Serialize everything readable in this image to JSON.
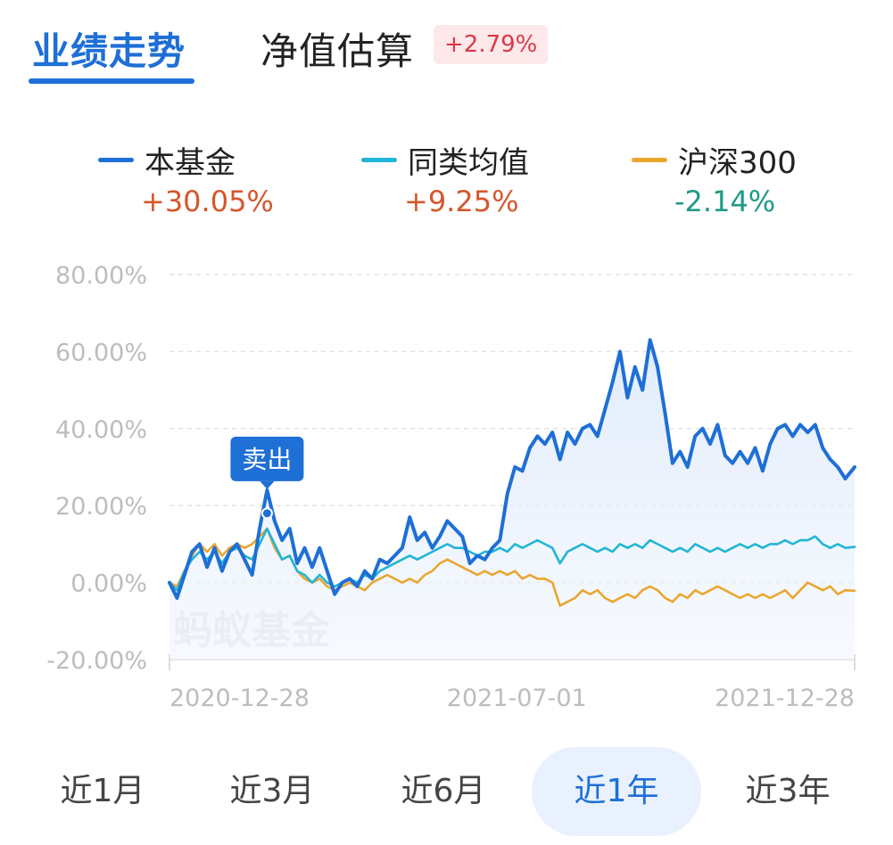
{
  "tabs": {
    "performance": "业绩走势",
    "nav_estimate": "净值估算",
    "estimate_badge": "+2.79%"
  },
  "legend": [
    {
      "name": "本基金",
      "value": "+30.05%",
      "color": "#1e6fd6",
      "value_color": "#d4572c"
    },
    {
      "name": "同类均值",
      "value": "+9.25%",
      "color": "#21b5d6",
      "value_color": "#d4572c"
    },
    {
      "name": "沪深300",
      "value": "-2.14%",
      "color": "#eba630",
      "value_color": "#1f9a86"
    }
  ],
  "watermark": "蚂蚁基金",
  "chart_data": {
    "type": "line",
    "y_ticks": [
      "80.00%",
      "60.00%",
      "40.00%",
      "20.00%",
      "0.00%",
      "-20.00%"
    ],
    "ylim": [
      -20,
      80
    ],
    "x_ticks": [
      {
        "label": "2020-12-28",
        "x": "2020-12-28"
      },
      {
        "label": "2021-07-01",
        "x": "2021-07-01"
      },
      {
        "label": "2021-12-28",
        "x": "2021-12-28"
      }
    ],
    "xlim": [
      "2020-12-28",
      "2021-12-28"
    ],
    "grid": true,
    "legend_position": "top",
    "annotation": {
      "label": "卖出",
      "x": "2021-02-18",
      "y": 18
    },
    "series": [
      {
        "name": "本基金",
        "color": "#1e6fd6",
        "area": true,
        "points": [
          [
            "2020-12-28",
            0
          ],
          [
            "2021-01-01",
            -4
          ],
          [
            "2021-01-05",
            2
          ],
          [
            "2021-01-09",
            8
          ],
          [
            "2021-01-13",
            10
          ],
          [
            "2021-01-17",
            4
          ],
          [
            "2021-01-21",
            9
          ],
          [
            "2021-01-25",
            3
          ],
          [
            "2021-01-29",
            8
          ],
          [
            "2021-02-02",
            10
          ],
          [
            "2021-02-06",
            6
          ],
          [
            "2021-02-10",
            2
          ],
          [
            "2021-02-14",
            14
          ],
          [
            "2021-02-18",
            24
          ],
          [
            "2021-02-22",
            16
          ],
          [
            "2021-02-26",
            11
          ],
          [
            "2021-03-02",
            14
          ],
          [
            "2021-03-06",
            5
          ],
          [
            "2021-03-10",
            9
          ],
          [
            "2021-03-14",
            4
          ],
          [
            "2021-03-18",
            9
          ],
          [
            "2021-03-22",
            3
          ],
          [
            "2021-03-26",
            -3
          ],
          [
            "2021-03-30",
            0
          ],
          [
            "2021-04-03",
            1
          ],
          [
            "2021-04-07",
            -1
          ],
          [
            "2021-04-11",
            3
          ],
          [
            "2021-04-15",
            1
          ],
          [
            "2021-04-19",
            6
          ],
          [
            "2021-04-23",
            5
          ],
          [
            "2021-04-27",
            7
          ],
          [
            "2021-05-01",
            9
          ],
          [
            "2021-05-05",
            17
          ],
          [
            "2021-05-09",
            11
          ],
          [
            "2021-05-13",
            13
          ],
          [
            "2021-05-17",
            9
          ],
          [
            "2021-05-21",
            12
          ],
          [
            "2021-05-25",
            16
          ],
          [
            "2021-05-29",
            14
          ],
          [
            "2021-06-02",
            12
          ],
          [
            "2021-06-06",
            5
          ],
          [
            "2021-06-10",
            7
          ],
          [
            "2021-06-14",
            6
          ],
          [
            "2021-06-18",
            9
          ],
          [
            "2021-06-22",
            11
          ],
          [
            "2021-06-26",
            23
          ],
          [
            "2021-06-30",
            30
          ],
          [
            "2021-07-04",
            29
          ],
          [
            "2021-07-08",
            35
          ],
          [
            "2021-07-12",
            38
          ],
          [
            "2021-07-16",
            36
          ],
          [
            "2021-07-20",
            39
          ],
          [
            "2021-07-24",
            32
          ],
          [
            "2021-07-28",
            39
          ],
          [
            "2021-08-01",
            36
          ],
          [
            "2021-08-05",
            40
          ],
          [
            "2021-08-09",
            41
          ],
          [
            "2021-08-13",
            38
          ],
          [
            "2021-08-17",
            45
          ],
          [
            "2021-08-21",
            52
          ],
          [
            "2021-08-25",
            60
          ],
          [
            "2021-08-29",
            48
          ],
          [
            "2021-09-02",
            56
          ],
          [
            "2021-09-06",
            50
          ],
          [
            "2021-09-10",
            63
          ],
          [
            "2021-09-14",
            56
          ],
          [
            "2021-09-18",
            44
          ],
          [
            "2021-09-22",
            31
          ],
          [
            "2021-09-26",
            34
          ],
          [
            "2021-09-30",
            30
          ],
          [
            "2021-10-04",
            38
          ],
          [
            "2021-10-08",
            40
          ],
          [
            "2021-10-12",
            36
          ],
          [
            "2021-10-16",
            41
          ],
          [
            "2021-10-20",
            33
          ],
          [
            "2021-10-24",
            31
          ],
          [
            "2021-10-28",
            34
          ],
          [
            "2021-11-01",
            31
          ],
          [
            "2021-11-05",
            35
          ],
          [
            "2021-11-09",
            29
          ],
          [
            "2021-11-13",
            36
          ],
          [
            "2021-11-17",
            40
          ],
          [
            "2021-11-21",
            41
          ],
          [
            "2021-11-25",
            38
          ],
          [
            "2021-11-29",
            41
          ],
          [
            "2021-12-03",
            39
          ],
          [
            "2021-12-07",
            41
          ],
          [
            "2021-12-11",
            35
          ],
          [
            "2021-12-15",
            32
          ],
          [
            "2021-12-19",
            30
          ],
          [
            "2021-12-23",
            27
          ],
          [
            "2021-12-28",
            30
          ]
        ]
      },
      {
        "name": "同类均值",
        "color": "#21b5d6",
        "area": false,
        "points": [
          [
            "2020-12-28",
            0
          ],
          [
            "2021-01-01",
            -2
          ],
          [
            "2021-01-05",
            3
          ],
          [
            "2021-01-09",
            6
          ],
          [
            "2021-01-13",
            8
          ],
          [
            "2021-01-17",
            6
          ],
          [
            "2021-01-21",
            8
          ],
          [
            "2021-01-25",
            5
          ],
          [
            "2021-01-29",
            8
          ],
          [
            "2021-02-02",
            9
          ],
          [
            "2021-02-06",
            7
          ],
          [
            "2021-02-10",
            6
          ],
          [
            "2021-02-14",
            10
          ],
          [
            "2021-02-18",
            14
          ],
          [
            "2021-02-22",
            10
          ],
          [
            "2021-02-26",
            6
          ],
          [
            "2021-03-02",
            7
          ],
          [
            "2021-03-06",
            3
          ],
          [
            "2021-03-10",
            2
          ],
          [
            "2021-03-14",
            0
          ],
          [
            "2021-03-18",
            2
          ],
          [
            "2021-03-22",
            0
          ],
          [
            "2021-03-26",
            -1
          ],
          [
            "2021-03-30",
            0
          ],
          [
            "2021-04-03",
            1
          ],
          [
            "2021-04-07",
            0
          ],
          [
            "2021-04-11",
            2
          ],
          [
            "2021-04-15",
            1
          ],
          [
            "2021-04-19",
            3
          ],
          [
            "2021-04-23",
            4
          ],
          [
            "2021-04-27",
            5
          ],
          [
            "2021-05-01",
            6
          ],
          [
            "2021-05-05",
            7
          ],
          [
            "2021-05-09",
            6
          ],
          [
            "2021-05-13",
            7
          ],
          [
            "2021-05-17",
            8
          ],
          [
            "2021-05-21",
            9
          ],
          [
            "2021-05-25",
            10
          ],
          [
            "2021-05-29",
            9
          ],
          [
            "2021-06-02",
            9
          ],
          [
            "2021-06-06",
            8
          ],
          [
            "2021-06-10",
            7
          ],
          [
            "2021-06-14",
            8
          ],
          [
            "2021-06-18",
            8
          ],
          [
            "2021-06-22",
            9
          ],
          [
            "2021-06-26",
            8
          ],
          [
            "2021-06-30",
            10
          ],
          [
            "2021-07-04",
            9
          ],
          [
            "2021-07-08",
            10
          ],
          [
            "2021-07-12",
            11
          ],
          [
            "2021-07-16",
            10
          ],
          [
            "2021-07-20",
            9
          ],
          [
            "2021-07-24",
            5
          ],
          [
            "2021-07-28",
            8
          ],
          [
            "2021-08-01",
            9
          ],
          [
            "2021-08-05",
            10
          ],
          [
            "2021-08-09",
            9
          ],
          [
            "2021-08-13",
            8
          ],
          [
            "2021-08-17",
            9
          ],
          [
            "2021-08-21",
            8
          ],
          [
            "2021-08-25",
            10
          ],
          [
            "2021-08-29",
            9
          ],
          [
            "2021-09-02",
            10
          ],
          [
            "2021-09-06",
            9
          ],
          [
            "2021-09-10",
            11
          ],
          [
            "2021-09-14",
            10
          ],
          [
            "2021-09-18",
            9
          ],
          [
            "2021-09-22",
            8
          ],
          [
            "2021-09-26",
            9
          ],
          [
            "2021-09-30",
            8
          ],
          [
            "2021-10-04",
            10
          ],
          [
            "2021-10-08",
            9
          ],
          [
            "2021-10-12",
            8
          ],
          [
            "2021-10-16",
            9
          ],
          [
            "2021-10-20",
            8
          ],
          [
            "2021-10-24",
            9
          ],
          [
            "2021-10-28",
            10
          ],
          [
            "2021-11-01",
            9
          ],
          [
            "2021-11-05",
            10
          ],
          [
            "2021-11-09",
            9
          ],
          [
            "2021-11-13",
            10
          ],
          [
            "2021-11-17",
            10
          ],
          [
            "2021-11-21",
            11
          ],
          [
            "2021-11-25",
            10
          ],
          [
            "2021-11-29",
            11
          ],
          [
            "2021-12-03",
            11
          ],
          [
            "2021-12-07",
            12
          ],
          [
            "2021-12-11",
            10
          ],
          [
            "2021-12-15",
            9
          ],
          [
            "2021-12-19",
            10
          ],
          [
            "2021-12-23",
            9
          ],
          [
            "2021-12-28",
            9.25
          ]
        ]
      },
      {
        "name": "沪深300",
        "color": "#eba630",
        "area": false,
        "points": [
          [
            "2020-12-28",
            0
          ],
          [
            "2021-01-01",
            -1
          ],
          [
            "2021-01-05",
            3
          ],
          [
            "2021-01-09",
            7
          ],
          [
            "2021-01-13",
            10
          ],
          [
            "2021-01-17",
            8
          ],
          [
            "2021-01-21",
            10
          ],
          [
            "2021-01-25",
            7
          ],
          [
            "2021-01-29",
            9
          ],
          [
            "2021-02-02",
            10
          ],
          [
            "2021-02-06",
            9
          ],
          [
            "2021-02-10",
            10
          ],
          [
            "2021-02-14",
            12
          ],
          [
            "2021-02-18",
            14
          ],
          [
            "2021-02-22",
            9
          ],
          [
            "2021-02-26",
            6
          ],
          [
            "2021-03-02",
            7
          ],
          [
            "2021-03-06",
            3
          ],
          [
            "2021-03-10",
            1
          ],
          [
            "2021-03-14",
            0
          ],
          [
            "2021-03-18",
            1
          ],
          [
            "2021-03-22",
            -1
          ],
          [
            "2021-03-26",
            -2
          ],
          [
            "2021-03-30",
            -1
          ],
          [
            "2021-04-03",
            0
          ],
          [
            "2021-04-07",
            -1
          ],
          [
            "2021-04-11",
            -2
          ],
          [
            "2021-04-15",
            0
          ],
          [
            "2021-04-19",
            1
          ],
          [
            "2021-04-23",
            2
          ],
          [
            "2021-04-27",
            1
          ],
          [
            "2021-05-01",
            0
          ],
          [
            "2021-05-05",
            1
          ],
          [
            "2021-05-09",
            0
          ],
          [
            "2021-05-13",
            2
          ],
          [
            "2021-05-17",
            3
          ],
          [
            "2021-05-21",
            5
          ],
          [
            "2021-05-25",
            6
          ],
          [
            "2021-05-29",
            5
          ],
          [
            "2021-06-02",
            4
          ],
          [
            "2021-06-06",
            3
          ],
          [
            "2021-06-10",
            2
          ],
          [
            "2021-06-14",
            3
          ],
          [
            "2021-06-18",
            2
          ],
          [
            "2021-06-22",
            3
          ],
          [
            "2021-06-26",
            2
          ],
          [
            "2021-06-30",
            3
          ],
          [
            "2021-07-04",
            1
          ],
          [
            "2021-07-08",
            2
          ],
          [
            "2021-07-12",
            1
          ],
          [
            "2021-07-16",
            1
          ],
          [
            "2021-07-20",
            0
          ],
          [
            "2021-07-24",
            -6
          ],
          [
            "2021-07-28",
            -5
          ],
          [
            "2021-08-01",
            -4
          ],
          [
            "2021-08-05",
            -2
          ],
          [
            "2021-08-09",
            -3
          ],
          [
            "2021-08-13",
            -2
          ],
          [
            "2021-08-17",
            -4
          ],
          [
            "2021-08-21",
            -5
          ],
          [
            "2021-08-25",
            -4
          ],
          [
            "2021-08-29",
            -3
          ],
          [
            "2021-09-02",
            -4
          ],
          [
            "2021-09-06",
            -2
          ],
          [
            "2021-09-10",
            -1
          ],
          [
            "2021-09-14",
            -2
          ],
          [
            "2021-09-18",
            -4
          ],
          [
            "2021-09-22",
            -5
          ],
          [
            "2021-09-26",
            -3
          ],
          [
            "2021-09-30",
            -4
          ],
          [
            "2021-10-04",
            -2
          ],
          [
            "2021-10-08",
            -3
          ],
          [
            "2021-10-12",
            -2
          ],
          [
            "2021-10-16",
            -1
          ],
          [
            "2021-10-20",
            -2
          ],
          [
            "2021-10-24",
            -3
          ],
          [
            "2021-10-28",
            -4
          ],
          [
            "2021-11-01",
            -3
          ],
          [
            "2021-11-05",
            -4
          ],
          [
            "2021-11-09",
            -3
          ],
          [
            "2021-11-13",
            -4
          ],
          [
            "2021-11-17",
            -3
          ],
          [
            "2021-11-21",
            -2
          ],
          [
            "2021-11-25",
            -4
          ],
          [
            "2021-11-29",
            -2
          ],
          [
            "2021-12-03",
            0
          ],
          [
            "2021-12-07",
            -1
          ],
          [
            "2021-12-11",
            -2
          ],
          [
            "2021-12-15",
            -1
          ],
          [
            "2021-12-19",
            -3
          ],
          [
            "2021-12-23",
            -2
          ],
          [
            "2021-12-28",
            -2.14
          ]
        ]
      }
    ]
  },
  "ranges": [
    {
      "label": "近1月",
      "active": false
    },
    {
      "label": "近3月",
      "active": false
    },
    {
      "label": "近6月",
      "active": false
    },
    {
      "label": "近1年",
      "active": true
    },
    {
      "label": "近3年",
      "active": false
    }
  ]
}
